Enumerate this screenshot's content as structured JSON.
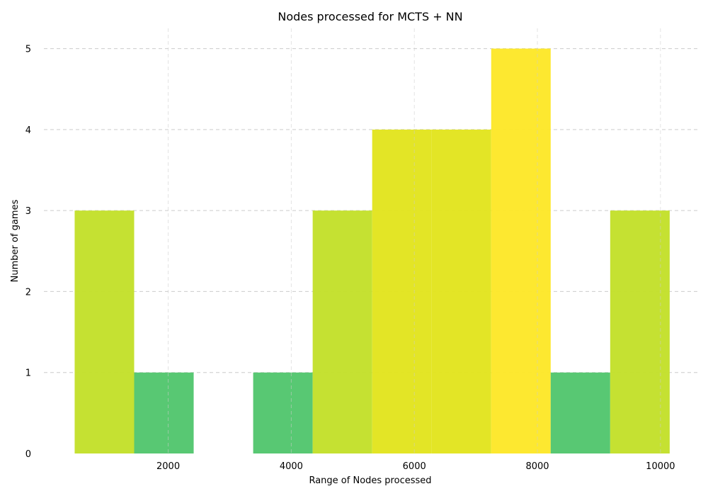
{
  "chart_data": {
    "type": "bar",
    "title": "Nodes  processed for MCTS + NN",
    "xlabel": "Range of Nodes processed",
    "ylabel": "Number of games",
    "xlim": [
      -20,
      10600
    ],
    "ylim": [
      0,
      5.25
    ],
    "x_ticks": [
      2000,
      4000,
      6000,
      8000,
      10000
    ],
    "y_ticks": [
      0,
      1,
      2,
      3,
      4,
      5
    ],
    "grid": true,
    "bins": [
      {
        "start": 480,
        "end": 1447,
        "count": 3,
        "color": "#c2df27"
      },
      {
        "start": 1447,
        "end": 2414,
        "count": 1,
        "color": "#4fc56b"
      },
      {
        "start": 2414,
        "end": 3381,
        "count": 0,
        "color": "#4fc56b"
      },
      {
        "start": 3381,
        "end": 4348,
        "count": 1,
        "color": "#4fc56b"
      },
      {
        "start": 4348,
        "end": 5315,
        "count": 3,
        "color": "#c2df27"
      },
      {
        "start": 5315,
        "end": 6282,
        "count": 4,
        "color": "#e1e41a"
      },
      {
        "start": 6282,
        "end": 7249,
        "count": 4,
        "color": "#e1e41a"
      },
      {
        "start": 7249,
        "end": 8216,
        "count": 5,
        "color": "#fde725"
      },
      {
        "start": 8216,
        "end": 9183,
        "count": 1,
        "color": "#4fc56b"
      },
      {
        "start": 9183,
        "end": 10150,
        "count": 3,
        "color": "#c2df27"
      }
    ]
  }
}
